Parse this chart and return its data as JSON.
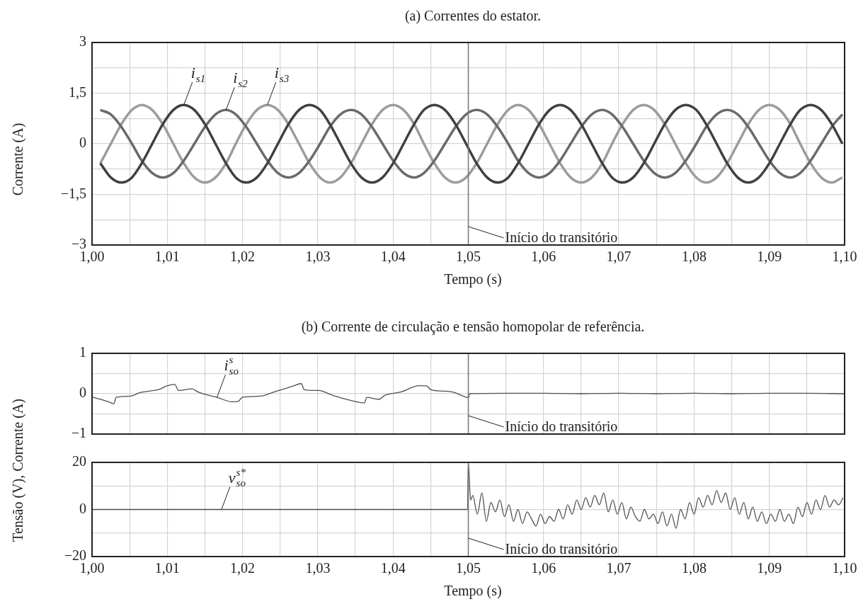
{
  "chart_data": [
    {
      "type": "line",
      "title": "(a) Correntes do estator.",
      "xlabel": "Tempo (s)",
      "ylabel": "Corrente (A)",
      "x": [
        1.0011,
        1.0025,
        1.0039,
        1.0053,
        1.0066,
        1.008,
        1.0094,
        1.0108,
        1.0122,
        1.0136,
        1.015,
        1.0164,
        1.0178,
        1.0191,
        1.0205,
        1.0219,
        1.0233,
        1.0247,
        1.0261,
        1.0275,
        1.0289,
        1.0303,
        1.0316,
        1.033,
        1.0344,
        1.0358,
        1.0372,
        1.0386,
        1.04,
        1.0414,
        1.0428,
        1.0441,
        1.0455,
        1.0469,
        1.0483,
        1.0497,
        1.0511,
        1.0525,
        1.0539,
        1.0553,
        1.0566,
        1.058,
        1.0594,
        1.0608,
        1.0622,
        1.0636,
        1.065,
        1.0664,
        1.0678,
        1.0691,
        1.0705,
        1.0719,
        1.0733,
        1.0747,
        1.0761,
        1.0775,
        1.0789,
        1.0803,
        1.0816,
        1.083,
        1.0844,
        1.0858,
        1.0872,
        1.0886,
        1.09,
        1.0914,
        1.0928,
        1.0941,
        1.0955,
        1.0969,
        1.0983,
        1.0997
      ],
      "series": [
        {
          "color": "#404040",
          "values": [
            -0.58,
            -1.0,
            -1.15,
            -1.0,
            -0.58,
            0,
            0.58,
            1.0,
            1.15,
            1.0,
            0.58,
            0,
            -0.58,
            -1.0,
            -1.15,
            -1.0,
            -0.58,
            0,
            0.58,
            1.0,
            1.15,
            1.0,
            0.58,
            0,
            -0.58,
            -1.0,
            -1.15,
            -1.0,
            -0.58,
            0,
            0.58,
            1.0,
            1.15,
            1.0,
            0.58,
            0,
            -0.58,
            -1.0,
            -1.15,
            -1.0,
            -0.58,
            0,
            0.58,
            1.0,
            1.15,
            1.0,
            0.58,
            0,
            -0.58,
            -1.0,
            -1.15,
            -1.0,
            -0.58,
            0,
            0.58,
            1.0,
            1.15,
            1.0,
            0.58,
            0,
            -0.58,
            -1.0,
            -1.15,
            -1.0,
            -0.58,
            0,
            0.58,
            1.0,
            1.15,
            1.0,
            0.58,
            0
          ]
        },
        {
          "color": "#6a6a6a",
          "values": [
            1,
            0.87,
            0.5,
            0,
            -0.5,
            -0.87,
            -1,
            -0.87,
            -0.5,
            0,
            0.5,
            0.87,
            1,
            0.87,
            0.5,
            0,
            -0.5,
            -0.87,
            -1,
            -0.87,
            -0.5,
            0,
            0.5,
            0.87,
            1,
            0.87,
            0.5,
            0,
            -0.5,
            -0.87,
            -1,
            -0.87,
            -0.5,
            0,
            0.5,
            0.87,
            1,
            0.87,
            0.5,
            0,
            -0.5,
            -0.87,
            -1,
            -0.87,
            -0.5,
            0,
            0.5,
            0.87,
            1,
            0.87,
            0.5,
            0,
            -0.5,
            -0.87,
            -1,
            -0.87,
            -0.5,
            0,
            0.5,
            0.87,
            1,
            0.87,
            0.5,
            0,
            -0.5,
            -0.87,
            -1,
            -0.87,
            -0.5,
            0,
            0.5,
            0.87
          ]
        },
        {
          "color": "#9c9c9c",
          "values": [
            -0.58,
            0,
            0.58,
            1.0,
            1.15,
            1.0,
            0.58,
            0,
            -0.58,
            -1.0,
            -1.15,
            -1.0,
            -0.58,
            0,
            0.58,
            1.0,
            1.15,
            1.0,
            0.58,
            0,
            -0.58,
            -1.0,
            -1.15,
            -1.0,
            -0.58,
            0,
            0.58,
            1.0,
            1.15,
            1.0,
            0.58,
            0,
            -0.58,
            -1.0,
            -1.15,
            -1.0,
            -0.58,
            0,
            0.58,
            1.0,
            1.15,
            1.0,
            0.58,
            0,
            -0.58,
            -1.0,
            -1.15,
            -1.0,
            -0.58,
            0,
            0.58,
            1.0,
            1.15,
            1.0,
            0.58,
            0,
            -0.58,
            -1.0,
            -1.15,
            -1.0,
            -0.58,
            0,
            0.58,
            1.0,
            1.15,
            1.0,
            0.58,
            0,
            -0.58,
            -1.0,
            -1.15,
            -1.0
          ]
        }
      ],
      "xlim": [
        1.0,
        1.1
      ],
      "xticks": [
        {
          "value": 1.0,
          "label": "1,00"
        },
        {
          "value": 1.005,
          "label": null
        },
        {
          "value": 1.01,
          "label": "1,01"
        },
        {
          "value": 1.015,
          "label": null
        },
        {
          "value": 1.02,
          "label": "1,02"
        },
        {
          "value": 1.025,
          "label": null
        },
        {
          "value": 1.03,
          "label": "1,03"
        },
        {
          "value": 1.035,
          "label": null
        },
        {
          "value": 1.04,
          "label": "1,04"
        },
        {
          "value": 1.045,
          "label": null
        },
        {
          "value": 1.05,
          "label": "1,05"
        },
        {
          "value": 1.055,
          "label": null
        },
        {
          "value": 1.06,
          "label": "1,06"
        },
        {
          "value": 1.065,
          "label": null
        },
        {
          "value": 1.07,
          "label": "1,07"
        },
        {
          "value": 1.075,
          "label": null
        },
        {
          "value": 1.08,
          "label": "1,08"
        },
        {
          "value": 1.085,
          "label": null
        },
        {
          "value": 1.09,
          "label": "1,09"
        },
        {
          "value": 1.095,
          "label": null
        },
        {
          "value": 1.1,
          "label": "1,10"
        }
      ],
      "ylim": [
        -3,
        3
      ],
      "yticks": [
        {
          "value": -3,
          "label": "−3"
        },
        {
          "value": -2.25,
          "label": null
        },
        {
          "value": -1.5,
          "label": "−1,5"
        },
        {
          "value": -0.75,
          "label": null
        },
        0,
        {
          "value": 0.75,
          "label": null
        },
        {
          "value": 1.5,
          "label": "1,5"
        },
        {
          "value": 2.25,
          "label": null
        },
        3
      ],
      "grid": true,
      "ref_lines": [
        {
          "axis": "x",
          "value": 1.05,
          "label": "Início do transitório",
          "color": "#777777"
        }
      ],
      "annotations": [
        {
          "text": "i$_{s1}$",
          "x": 1.0122,
          "y": 1.15
        },
        {
          "text": "i$_{s2}$",
          "x": 1.0178,
          "y": 1.0
        },
        {
          "text": "i$_{s3}$",
          "x": 1.0233,
          "y": 1.15
        }
      ]
    },
    {
      "type": "line",
      "title": "(b) Corrente de circulação e tensão homopolar de referência.",
      "ylabel": "Tensão (V), Corrente (A)",
      "series": [
        {
          "color": "#505050",
          "x": [
            1.0,
            1.0022,
            1.0029,
            1.0032,
            1.0051,
            1.0064,
            1.009,
            1.0099,
            1.011,
            1.0115,
            1.0133,
            1.0141,
            1.0166,
            1.0186,
            1.0194,
            1.02,
            1.0224,
            1.0243,
            1.0266,
            1.0278,
            1.0282,
            1.0301,
            1.032,
            1.0349,
            1.0362,
            1.0365,
            1.0381,
            1.0389,
            1.041,
            1.0435,
            1.0445,
            1.045,
            1.0477,
            1.0496,
            1.05,
            1.0502,
            1.055,
            1.06,
            1.065,
            1.07,
            1.075,
            1.08,
            1.085,
            1.09,
            1.095,
            1.1
          ],
          "values": [
            -0.08,
            -0.2,
            -0.25,
            -0.09,
            -0.06,
            0.03,
            0.11,
            0.19,
            0.23,
            0.08,
            0.12,
            0.04,
            -0.09,
            -0.2,
            -0.19,
            -0.09,
            -0.06,
            0.05,
            0.18,
            0.25,
            0.1,
            0.08,
            -0.04,
            -0.19,
            -0.23,
            -0.09,
            -0.14,
            -0.04,
            0.04,
            0.2,
            0.19,
            0.1,
            0.05,
            -0.08,
            -0.1,
            0,
            0.01,
            0.01,
            0,
            0.01,
            0,
            0.01,
            0,
            0.01,
            0.01,
            0
          ]
        }
      ],
      "xlim": [
        1.0,
        1.1
      ],
      "xticks": [
        {
          "value": 1.0,
          "label": null
        },
        {
          "value": 1.005,
          "label": null
        },
        {
          "value": 1.01,
          "label": null
        },
        {
          "value": 1.015,
          "label": null
        },
        {
          "value": 1.02,
          "label": null
        },
        {
          "value": 1.025,
          "label": null
        },
        {
          "value": 1.03,
          "label": null
        },
        {
          "value": 1.035,
          "label": null
        },
        {
          "value": 1.04,
          "label": null
        },
        {
          "value": 1.045,
          "label": null
        },
        {
          "value": 1.05,
          "label": null
        },
        {
          "value": 1.055,
          "label": null
        },
        {
          "value": 1.06,
          "label": null
        },
        {
          "value": 1.065,
          "label": null
        },
        {
          "value": 1.07,
          "label": null
        },
        {
          "value": 1.075,
          "label": null
        },
        {
          "value": 1.08,
          "label": null
        },
        {
          "value": 1.085,
          "label": null
        },
        {
          "value": 1.09,
          "label": null
        },
        {
          "value": 1.095,
          "label": null
        },
        {
          "value": 1.1,
          "label": null
        }
      ],
      "ylim": [
        -1,
        1
      ],
      "yticks": [
        {
          "value": -1,
          "label": "−1"
        },
        {
          "value": -0.5,
          "label": null
        },
        0,
        {
          "value": 0.5,
          "label": null
        },
        1
      ],
      "tick_labels": "y",
      "grid": true,
      "ref_lines": [
        {
          "axis": "x",
          "value": 1.05,
          "label": "Início do transitório",
          "color": "#777777"
        }
      ],
      "annotations": [
        {
          "text": "i$^{s}$$_{so}$",
          "x": 1.0166,
          "y": -0.09
        }
      ]
    },
    {
      "type": "line",
      "xlabel": "Tempo (s)",
      "series": [
        {
          "color": "#505050",
          "x": [
            1.0,
            1.0499,
            1.05,
            1.0503,
            1.0506,
            1.0512,
            1.0518,
            1.0524,
            1.053,
            1.0536,
            1.0542,
            1.0548,
            1.0554,
            1.056,
            1.0566,
            1.0572,
            1.0578,
            1.0584,
            1.059,
            1.0596,
            1.0602,
            1.0608,
            1.0614,
            1.062,
            1.0626,
            1.0632,
            1.0638,
            1.0644,
            1.065,
            1.0656,
            1.0662,
            1.0668,
            1.0674,
            1.068,
            1.0686,
            1.0692,
            1.0698,
            1.0704,
            1.071,
            1.0716,
            1.0722,
            1.0728,
            1.0734,
            1.074,
            1.0746,
            1.0752,
            1.0758,
            1.0764,
            1.077,
            1.0776,
            1.0782,
            1.0788,
            1.0794,
            1.08,
            1.0806,
            1.0812,
            1.0818,
            1.0824,
            1.083,
            1.0836,
            1.0842,
            1.0848,
            1.0854,
            1.086,
            1.0866,
            1.0872,
            1.0878,
            1.0884,
            1.089,
            1.0896,
            1.0902,
            1.0908,
            1.0914,
            1.092,
            1.0926,
            1.0932,
            1.0938,
            1.0944,
            1.095,
            1.0956,
            1.0962,
            1.0968,
            1.0974,
            1.098,
            1.0986,
            1.0992,
            1.0998
          ],
          "values": [
            0,
            0,
            20,
            4,
            6,
            -2,
            7,
            -5,
            3,
            -1,
            4,
            -3,
            2,
            -5,
            0,
            -6,
            -1,
            -4,
            -7,
            -2,
            -6,
            -3,
            -5,
            0,
            -4,
            2,
            -2,
            4,
            0,
            5,
            1,
            6,
            2,
            7,
            -1,
            4,
            -2,
            3,
            -4,
            1,
            -3,
            -5,
            0,
            -4,
            -2,
            -6,
            -1,
            -7,
            -2,
            -8,
            0,
            -4,
            3,
            -2,
            5,
            1,
            6,
            2,
            8,
            3,
            7,
            0,
            5,
            -2,
            3,
            -4,
            1,
            -5,
            -1,
            -6,
            -2,
            -5,
            0,
            -5,
            -2,
            -6,
            1,
            -3,
            3,
            -2,
            4,
            0,
            6,
            1,
            4,
            2,
            5
          ]
        }
      ],
      "xlim": [
        1.0,
        1.1
      ],
      "xticks": [
        {
          "value": 1.0,
          "label": "1,00"
        },
        {
          "value": 1.005,
          "label": null
        },
        {
          "value": 1.01,
          "label": "1,01"
        },
        {
          "value": 1.015,
          "label": null
        },
        {
          "value": 1.02,
          "label": "1,02"
        },
        {
          "value": 1.025,
          "label": null
        },
        {
          "value": 1.03,
          "label": "1,03"
        },
        {
          "value": 1.035,
          "label": null
        },
        {
          "value": 1.04,
          "label": "1,04"
        },
        {
          "value": 1.045,
          "label": null
        },
        {
          "value": 1.05,
          "label": "1,05"
        },
        {
          "value": 1.055,
          "label": null
        },
        {
          "value": 1.06,
          "label": "1,06"
        },
        {
          "value": 1.065,
          "label": null
        },
        {
          "value": 1.07,
          "label": "1,07"
        },
        {
          "value": 1.075,
          "label": null
        },
        {
          "value": 1.08,
          "label": "1,08"
        },
        {
          "value": 1.085,
          "label": null
        },
        {
          "value": 1.09,
          "label": "1,09"
        },
        {
          "value": 1.095,
          "label": null
        },
        {
          "value": 1.1,
          "label": "1,10"
        }
      ],
      "ylim": [
        -20,
        20
      ],
      "yticks": [
        {
          "value": -20,
          "label": "−20"
        },
        {
          "value": -10,
          "label": null
        },
        0,
        {
          "value": 10,
          "label": null
        },
        20
      ],
      "grid": true,
      "ref_lines": [
        {
          "axis": "x",
          "value": 1.05,
          "label": "Início do transitório",
          "color": "#777777"
        }
      ],
      "annotations": [
        {
          "text": "v$^{s*}$$_{so}$",
          "x": 1.0172,
          "y": 0
        }
      ]
    }
  ]
}
